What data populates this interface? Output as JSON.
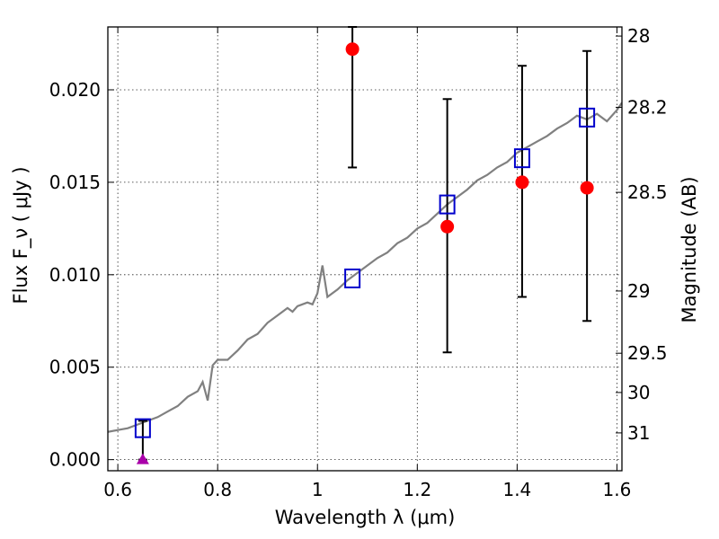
{
  "chart_data": {
    "type": "scatter",
    "xlabel": "Wavelength  λ (μm)",
    "ylabel": "Flux  F_ν  ( μJy )",
    "y2label": "Magnitude (AB)",
    "xlim": [
      0.58,
      1.61
    ],
    "ylim": [
      -0.0006,
      0.0234
    ],
    "grid": true,
    "x_ticks": [
      {
        "value": 0.6,
        "label": "0.6"
      },
      {
        "value": 0.8,
        "label": "0.8"
      },
      {
        "value": 1.0,
        "label": "1"
      },
      {
        "value": 1.2,
        "label": "1.2"
      },
      {
        "value": 1.4,
        "label": "1.4"
      },
      {
        "value": 1.6,
        "label": "1.6"
      }
    ],
    "y_ticks": [
      {
        "value": 0.0,
        "label": "0.000"
      },
      {
        "value": 0.005,
        "label": "0.005"
      },
      {
        "value": 0.01,
        "label": "0.010"
      },
      {
        "value": 0.015,
        "label": "0.015"
      },
      {
        "value": 0.02,
        "label": "0.020"
      }
    ],
    "y2_ticks": [
      {
        "value": 28,
        "label": "28"
      },
      {
        "value": 28.2,
        "label": "28.2"
      },
      {
        "value": 28.5,
        "label": "28.5"
      },
      {
        "value": 29,
        "label": "29"
      },
      {
        "value": 29.5,
        "label": "29.5"
      },
      {
        "value": 30,
        "label": "30"
      },
      {
        "value": 31,
        "label": "31"
      }
    ],
    "series": [
      {
        "kind": "model_sed_line",
        "color": "#808080",
        "x": [
          0.58,
          0.6,
          0.62,
          0.64,
          0.66,
          0.68,
          0.7,
          0.72,
          0.74,
          0.76,
          0.77,
          0.78,
          0.79,
          0.8,
          0.82,
          0.84,
          0.86,
          0.88,
          0.9,
          0.92,
          0.94,
          0.95,
          0.96,
          0.98,
          0.99,
          1.0,
          1.01,
          1.02,
          1.04,
          1.06,
          1.08,
          1.1,
          1.12,
          1.14,
          1.16,
          1.18,
          1.2,
          1.22,
          1.24,
          1.26,
          1.28,
          1.3,
          1.32,
          1.34,
          1.36,
          1.38,
          1.4,
          1.42,
          1.44,
          1.46,
          1.48,
          1.5,
          1.52,
          1.54,
          1.56,
          1.58,
          1.6,
          1.61
        ],
        "y": [
          0.0015,
          0.0016,
          0.0017,
          0.0019,
          0.0021,
          0.0023,
          0.0026,
          0.0029,
          0.0034,
          0.0037,
          0.0042,
          0.0032,
          0.0051,
          0.0054,
          0.0054,
          0.0059,
          0.0065,
          0.0068,
          0.0074,
          0.0078,
          0.0082,
          0.008,
          0.0083,
          0.0085,
          0.0084,
          0.009,
          0.0105,
          0.0088,
          0.0092,
          0.0097,
          0.0101,
          0.0105,
          0.0109,
          0.0112,
          0.0117,
          0.012,
          0.0125,
          0.0128,
          0.0133,
          0.0138,
          0.0142,
          0.0146,
          0.0151,
          0.0154,
          0.0158,
          0.0161,
          0.0166,
          0.0169,
          0.0172,
          0.0175,
          0.0179,
          0.0182,
          0.0186,
          0.0184,
          0.0187,
          0.0183,
          0.0189,
          0.0193
        ]
      },
      {
        "kind": "model_photometry",
        "marker": "open-square",
        "color": "#0000cc",
        "x": [
          0.65,
          1.07,
          1.26,
          1.41,
          1.54
        ],
        "y": [
          0.0017,
          0.0098,
          0.0138,
          0.0163,
          0.0185
        ]
      },
      {
        "kind": "observed_flux",
        "marker": "filled-circle",
        "color": "#ff0000",
        "x": [
          1.07,
          1.26,
          1.41,
          1.54
        ],
        "y": [
          0.0222,
          0.0126,
          0.015,
          0.0147
        ],
        "err_low": [
          0.0064,
          0.0068,
          0.0062,
          0.0072
        ],
        "err_high": [
          0.0012,
          0.0069,
          0.0063,
          0.0074
        ]
      },
      {
        "kind": "upper_limit",
        "marker": "filled-triangle",
        "color": "#aa00aa",
        "x": [
          0.65
        ],
        "y": [
          0.0
        ],
        "err_low": [
          0.0
        ],
        "err_high": [
          0.0021
        ]
      }
    ]
  }
}
